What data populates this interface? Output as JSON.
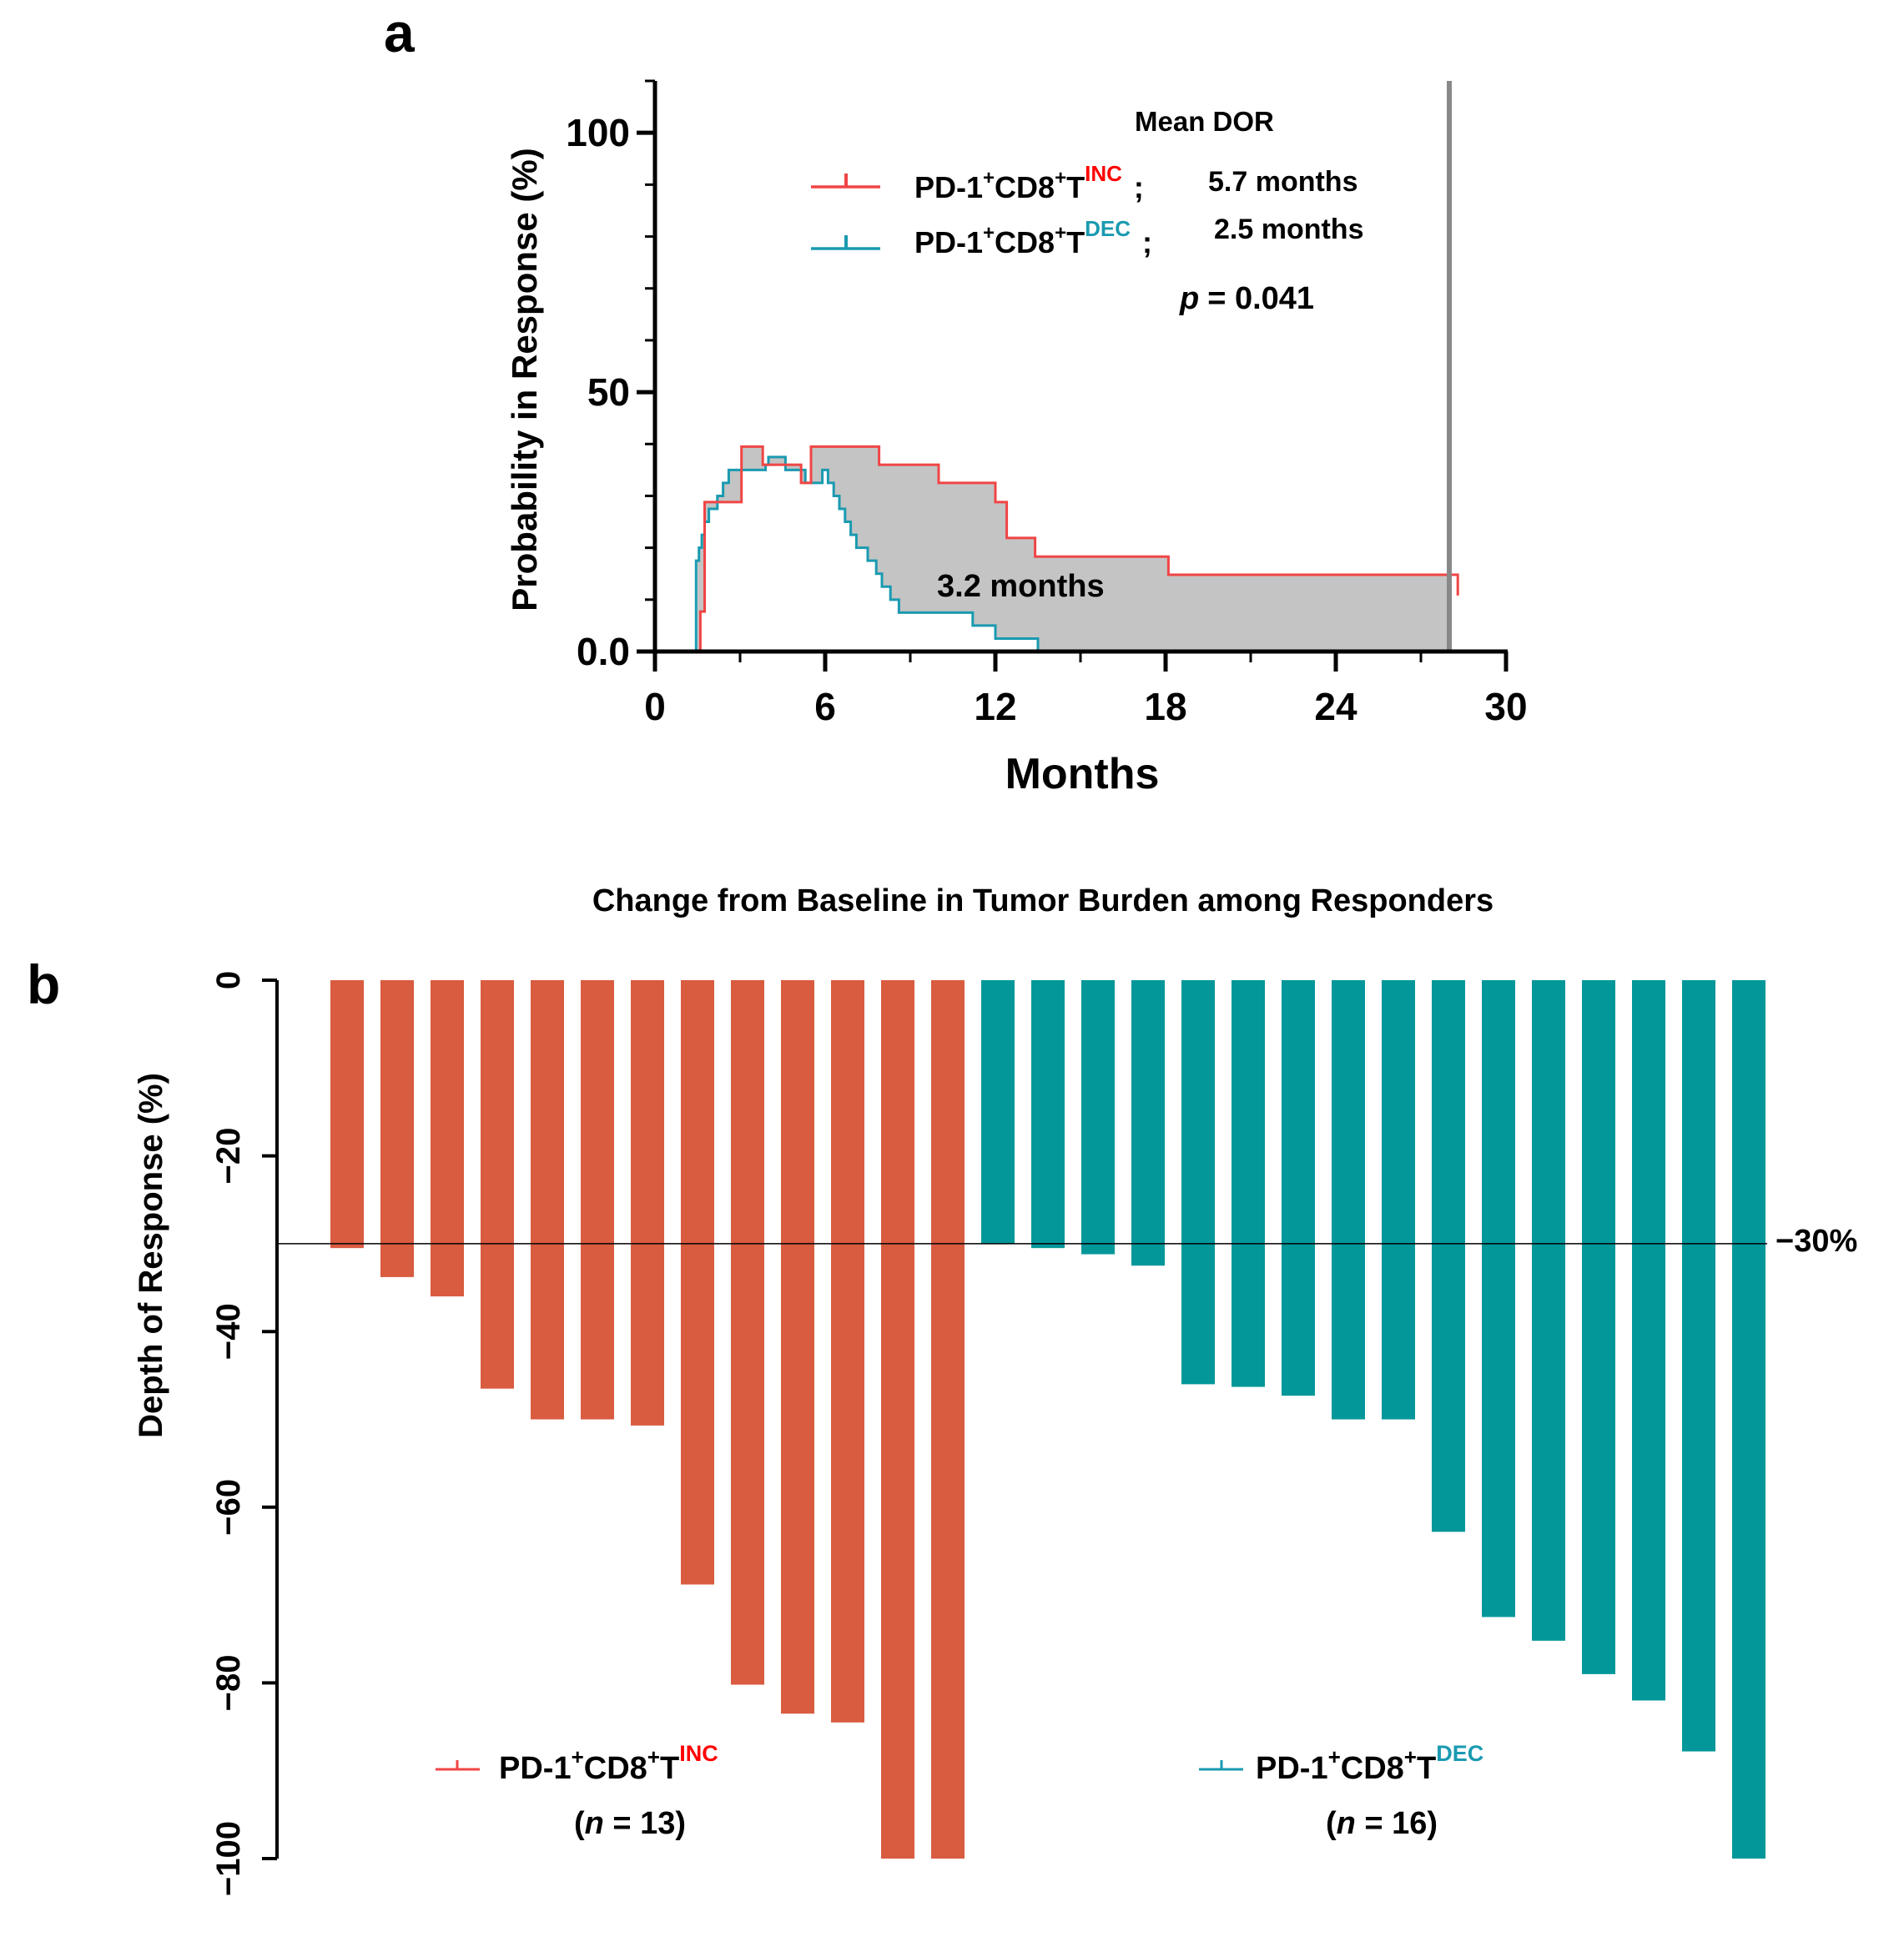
{
  "panel_a": {
    "panel_label": "a",
    "legend_title": "Mean DOR",
    "legend": [
      {
        "base": "PD-1",
        "sup1": "+",
        "mid": "CD8",
        "sup2": "+",
        "t": "T",
        "tag": "INC",
        "sep": ";",
        "value": "5.7 months",
        "color": "#f04545"
      },
      {
        "base": "PD-1",
        "sup1": "+",
        "mid": "CD8",
        "sup2": "+",
        "t": "T",
        "tag": "DEC",
        "sep": ";",
        "value": "2.5 months",
        "color": "#1a9ab0"
      }
    ],
    "p_label": "p",
    "p_value": "= 0.041",
    "shade_label": "3.2 months"
  },
  "panel_b": {
    "panel_label": "b",
    "threshold_label": "−30%",
    "legend": [
      {
        "base": "PD-1",
        "sup1": "+",
        "mid": "CD8",
        "sup2": "+",
        "t": "T",
        "tag": "INC",
        "n_open": "(",
        "n_italic": "n",
        "n_rest": " = 13)",
        "color": "#f04545"
      },
      {
        "base": "PD-1",
        "sup1": "+",
        "mid": "CD8",
        "sup2": "+",
        "t": "T",
        "tag": "DEC",
        "n_open": "(",
        "n_italic": "n",
        "n_rest": " = 16)",
        "color": "#1a9ab0"
      }
    ]
  },
  "colors": {
    "inc_line": "#f04545",
    "dec_line": "#1a9ab0",
    "inc_bar": "#d95b40",
    "dec_bar": "#03979a",
    "shade": "#c4c4c4",
    "ref_line": "#888888",
    "axis": "#000000"
  },
  "chart_data": [
    {
      "type": "line",
      "subtype": "kaplan-meier step",
      "title": "",
      "xlabel": "Months",
      "ylabel": "Probability in Response (%)",
      "xlim": [
        0,
        30
      ],
      "ylim": [
        0,
        110
      ],
      "xticks": [
        0,
        6,
        12,
        18,
        24,
        30
      ],
      "yticks": [
        0,
        50,
        100
      ],
      "ytick_labels": [
        "0.0",
        "50",
        "100"
      ],
      "reference_line_x": 28,
      "series": [
        {
          "name": "PD-1+CD8+T INC",
          "x": [
            0,
            1.5,
            1.6,
            1.75,
            2.9,
            3.05,
            3.8,
            4.65,
            5.15,
            5.5,
            7.0,
            7.9,
            10.0,
            12.0,
            12.4,
            13.4,
            17.7,
            18.1,
            28.3
          ],
          "y": [
            0,
            0,
            7.7,
            28.8,
            28.8,
            39.5,
            36.0,
            36.0,
            32.5,
            39.5,
            39.5,
            36.0,
            32.5,
            28.8,
            21.9,
            18.3,
            18.3,
            14.8,
            10.8
          ]
        },
        {
          "name": "PD-1+CD8+T DEC",
          "x": [
            0,
            1.45,
            1.55,
            1.65,
            1.75,
            1.9,
            2.2,
            2.4,
            2.6,
            3.5,
            3.65,
            3.9,
            4.0,
            4.6,
            5.3,
            5.9,
            6.1,
            6.3,
            6.5,
            6.7,
            6.9,
            7.1,
            7.5,
            7.8,
            8.0,
            8.3,
            8.6,
            9.0,
            11.2,
            12.0,
            13.5,
            16.5
          ],
          "y": [
            0,
            17.5,
            20.0,
            22.5,
            25.0,
            27.5,
            30.0,
            32.5,
            35.0,
            35.0,
            35.0,
            36.0,
            37.5,
            35.0,
            32.5,
            35.0,
            32.5,
            30.0,
            27.5,
            25.0,
            22.5,
            20.0,
            17.5,
            15.0,
            12.5,
            10.0,
            7.5,
            7.5,
            5.0,
            2.5,
            0,
            0
          ]
        }
      ]
    },
    {
      "type": "bar",
      "subtype": "waterfall",
      "title": "Change from Baseline in Tumor Burden among Responders",
      "xlabel": "",
      "ylabel": "Depth of Response (%)",
      "ylim": [
        -100,
        0
      ],
      "yticks": [
        0,
        -20,
        -40,
        -60,
        -80,
        -100
      ],
      "ytick_labels": [
        "0",
        "−20",
        "−40",
        "−60",
        "−80",
        "−100"
      ],
      "threshold": -30,
      "series": [
        {
          "name": "PD-1+CD8+T INC",
          "n": 13,
          "values": [
            -30.5,
            -33.8,
            -36.0,
            -46.5,
            -50.0,
            -50.0,
            -50.7,
            -68.8,
            -80.2,
            -83.5,
            -84.5,
            -100,
            -100
          ]
        },
        {
          "name": "PD-1+CD8+T DEC",
          "n": 16,
          "values": [
            -30.0,
            -30.5,
            -31.2,
            -32.5,
            -46.0,
            -46.3,
            -47.3,
            -50.0,
            -50.0,
            -62.8,
            -72.5,
            -75.2,
            -79.0,
            -82.0,
            -87.8,
            -100
          ]
        }
      ]
    }
  ]
}
